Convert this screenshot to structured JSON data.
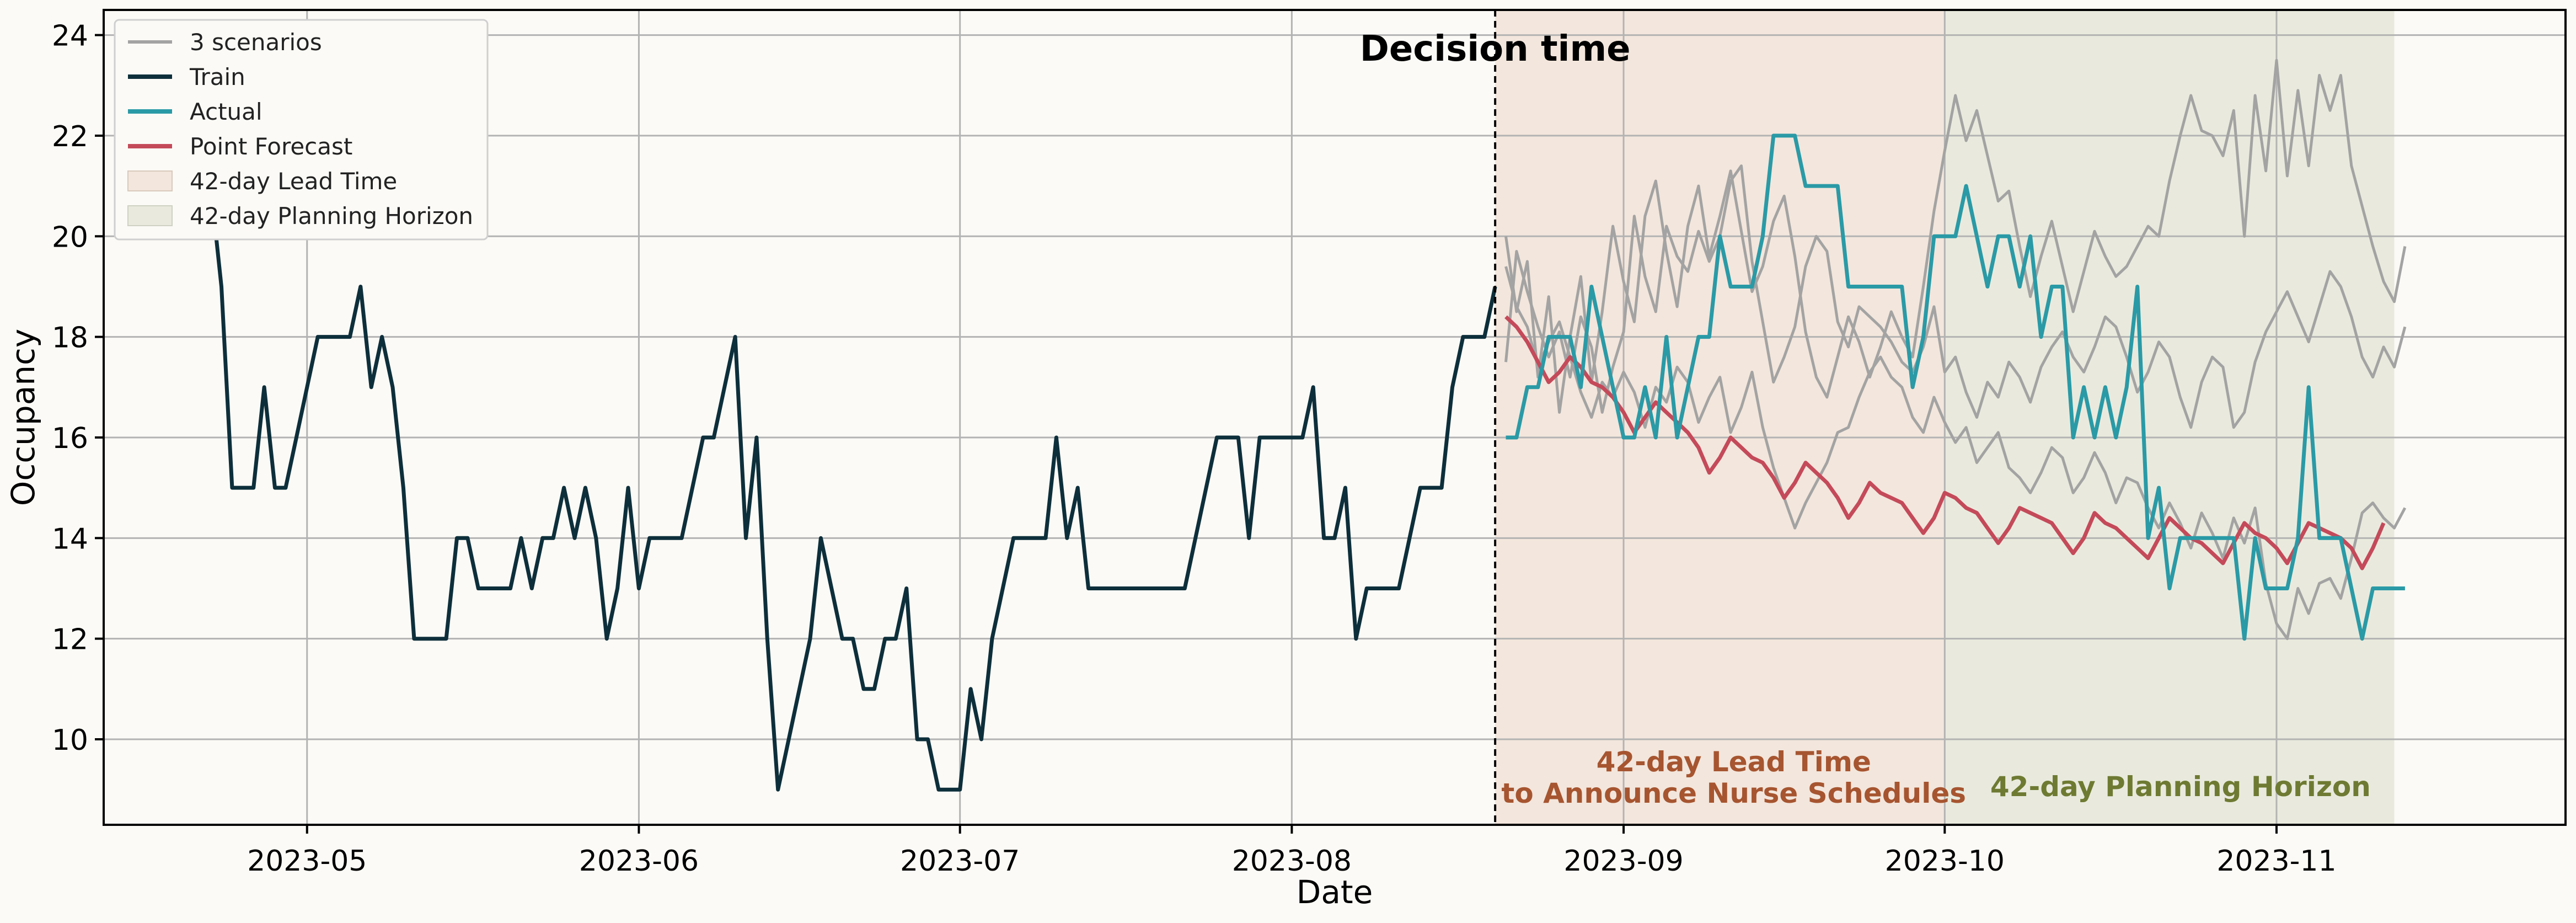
{
  "chart_data": {
    "type": "line",
    "xlabel": "Date",
    "ylabel": "Occupancy",
    "xlim": [
      "2023-04-12",
      "2023-11-28"
    ],
    "ylim": [
      8.3,
      24.5
    ],
    "grid": true,
    "legend_position": "top-left",
    "x_ticks": [
      "2023-05-01",
      "2023-06-01",
      "2023-07-01",
      "2023-08-01",
      "2023-09-01",
      "2023-10-01",
      "2023-11-01"
    ],
    "x_tick_labels": [
      "2023-05",
      "2023-06",
      "2023-07",
      "2023-08",
      "2023-09",
      "2023-10",
      "2023-11"
    ],
    "y_ticks": [
      10,
      12,
      14,
      16,
      18,
      20,
      22,
      24
    ],
    "y_tick_labels": [
      "10",
      "12",
      "14",
      "16",
      "18",
      "20",
      "22",
      "24"
    ],
    "decision_date": "2023-08-20",
    "decision_label": "Decision time",
    "lead_time": {
      "start": "2023-08-20",
      "end": "2023-10-01",
      "legend": "42-day Lead Time",
      "annotation_line1": "42-day Lead Time",
      "annotation_line2": "to Announce Nurse Schedules",
      "color": "#f3e6dc",
      "text_color": "#a65530"
    },
    "planning_horizon": {
      "start": "2023-10-01",
      "end": "2023-11-12",
      "legend": "42-day Planning Horizon",
      "annotation": "42-day Planning Horizon",
      "color": "#e9eadd",
      "text_color": "#6e7a32"
    },
    "series": [
      {
        "name": "Train",
        "color": "#0d2f3b",
        "start": "2023-04-22",
        "values": [
          21,
          19,
          15,
          15,
          15,
          17,
          15,
          15,
          16,
          17,
          18,
          18,
          18,
          18,
          19,
          17,
          18,
          17,
          15,
          12,
          12,
          12,
          12,
          14,
          14,
          13,
          13,
          13,
          13,
          14,
          13,
          14,
          14,
          15,
          14,
          15,
          14,
          12,
          13,
          15,
          13,
          14,
          14,
          14,
          14,
          15,
          16,
          16,
          17,
          18,
          14,
          16,
          12,
          9,
          10,
          11,
          12,
          14,
          13,
          12,
          12,
          11,
          11,
          12,
          12,
          13,
          10,
          10,
          9,
          9,
          9,
          11,
          10,
          12,
          13,
          14,
          14,
          14,
          14,
          16,
          14,
          15,
          13,
          13,
          13,
          13,
          13,
          13,
          13,
          13,
          13,
          13,
          14,
          15,
          16,
          16,
          16,
          14,
          16,
          16,
          16,
          16,
          16,
          17,
          14,
          14,
          15,
          12,
          13,
          13,
          13,
          13,
          14,
          15,
          15,
          15,
          17,
          18,
          18,
          18,
          19
        ]
      },
      {
        "name": "Actual",
        "color": "#2a9aa6",
        "start": "2023-08-21",
        "values": [
          16,
          16,
          17,
          17,
          18,
          18,
          18,
          17,
          19,
          18,
          17,
          16,
          16,
          17,
          16,
          18,
          16,
          17,
          18,
          18,
          20,
          19,
          19,
          19,
          20,
          22,
          22,
          22,
          21,
          21,
          21,
          21,
          19,
          19,
          19,
          19,
          19,
          19,
          17,
          18,
          20,
          20,
          20,
          21,
          20,
          19,
          20,
          20,
          19,
          20,
          18,
          19,
          19,
          16,
          17,
          16,
          17,
          16,
          17,
          19,
          14,
          15,
          13,
          14,
          14,
          14,
          14,
          14,
          14,
          12,
          14,
          13,
          13,
          13,
          14,
          17,
          14,
          14,
          14,
          13,
          12,
          13,
          13,
          13,
          13
        ]
      },
      {
        "name": "Point Forecast",
        "color": "#c44a5a",
        "start": "2023-08-21",
        "values": [
          18.4,
          18.2,
          17.9,
          17.5,
          17.1,
          17.3,
          17.6,
          17.4,
          17.1,
          17.0,
          16.8,
          16.5,
          16.1,
          16.4,
          16.7,
          16.5,
          16.3,
          16.1,
          15.8,
          15.3,
          15.6,
          16.0,
          15.8,
          15.6,
          15.5,
          15.2,
          14.8,
          15.1,
          15.5,
          15.3,
          15.1,
          14.8,
          14.4,
          14.7,
          15.1,
          14.9,
          14.8,
          14.7,
          14.4,
          14.1,
          14.4,
          14.9,
          14.8,
          14.6,
          14.5,
          14.2,
          13.9,
          14.2,
          14.6,
          14.5,
          14.4,
          14.3,
          14.0,
          13.7,
          14.0,
          14.5,
          14.3,
          14.2,
          14.0,
          13.8,
          13.6,
          14.0,
          14.4,
          14.2,
          14.0,
          13.9,
          13.7,
          13.5,
          13.9,
          14.3,
          14.1,
          14.0,
          13.8,
          13.5,
          13.9,
          14.3,
          14.2,
          14.1,
          14.0,
          13.8,
          13.4,
          13.8,
          14.3
        ]
      }
    ],
    "scenarios": {
      "name": "3 scenarios",
      "color": "#a3a3a3",
      "start": "2023-08-21",
      "values": [
        [
          20.0,
          18.5,
          19.5,
          17.2,
          18.8,
          16.5,
          18.0,
          19.2,
          17.1,
          18.5,
          20.2,
          19.1,
          18.3,
          20.4,
          21.1,
          19.7,
          18.6,
          20.2,
          21.0,
          19.6,
          20.4,
          21.3,
          20.1,
          18.9,
          19.4,
          20.3,
          20.8,
          19.6,
          18.1,
          17.2,
          16.8,
          17.6,
          18.4,
          17.9,
          17.2,
          17.8,
          18.5,
          18.0,
          17.6,
          19.0,
          20.5,
          21.7,
          22.8,
          21.9,
          22.5,
          21.6,
          20.7,
          20.9,
          19.8,
          18.8,
          19.6,
          20.3,
          19.4,
          18.5,
          19.3,
          20.1,
          19.6,
          19.2,
          19.4,
          19.8,
          20.2,
          20.0,
          21.1,
          22.0,
          22.8,
          22.1,
          22.0,
          21.6,
          22.5,
          20.0,
          22.8,
          21.3,
          23.5,
          21.2,
          22.9,
          21.4,
          23.2,
          22.5,
          23.2,
          21.4,
          20.6,
          19.8,
          19.1,
          18.7,
          19.8
        ],
        [
          17.5,
          19.7,
          18.9,
          18.2,
          17.6,
          18.1,
          17.2,
          18.4,
          17.8,
          16.5,
          17.4,
          18.1,
          20.4,
          19.2,
          18.5,
          20.2,
          19.6,
          19.3,
          20.1,
          19.5,
          20.0,
          21.1,
          21.4,
          19.5,
          18.3,
          17.1,
          17.6,
          18.2,
          19.4,
          20.0,
          19.7,
          18.3,
          17.8,
          18.6,
          18.4,
          18.2,
          17.9,
          17.5,
          17.3,
          17.8,
          18.6,
          17.3,
          17.6,
          16.9,
          16.4,
          17.1,
          16.8,
          17.5,
          17.2,
          16.7,
          17.4,
          17.8,
          18.1,
          17.6,
          17.3,
          17.8,
          18.4,
          18.2,
          17.6,
          16.9,
          17.3,
          17.9,
          17.6,
          16.8,
          16.2,
          17.1,
          17.6,
          17.4,
          16.2,
          16.5,
          17.5,
          18.1,
          18.5,
          18.9,
          18.4,
          17.9,
          18.6,
          19.3,
          19.0,
          18.4,
          17.6,
          17.2,
          17.8,
          17.4,
          18.2
        ],
        [
          19.4,
          18.6,
          18.2,
          17.4,
          17.9,
          18.3,
          17.6,
          16.9,
          16.4,
          17.1,
          16.8,
          17.3,
          16.9,
          16.2,
          17.0,
          16.7,
          17.4,
          17.1,
          16.3,
          16.8,
          17.2,
          16.1,
          16.6,
          17.3,
          16.2,
          15.4,
          14.8,
          14.2,
          14.7,
          15.1,
          15.5,
          16.1,
          16.2,
          16.8,
          17.3,
          17.6,
          17.2,
          17.0,
          16.4,
          16.1,
          16.8,
          16.3,
          15.9,
          16.2,
          15.5,
          15.8,
          16.1,
          15.4,
          15.2,
          14.9,
          15.3,
          15.8,
          15.6,
          14.9,
          15.2,
          15.7,
          15.3,
          14.7,
          15.2,
          15.1,
          14.6,
          14.2,
          14.7,
          14.3,
          13.8,
          14.5,
          14.1,
          13.6,
          14.4,
          13.9,
          14.6,
          13.1,
          12.3,
          12.0,
          13.0,
          12.5,
          13.1,
          13.2,
          12.8,
          13.6,
          14.5,
          14.7,
          14.4,
          14.2,
          14.6
        ]
      ]
    }
  }
}
